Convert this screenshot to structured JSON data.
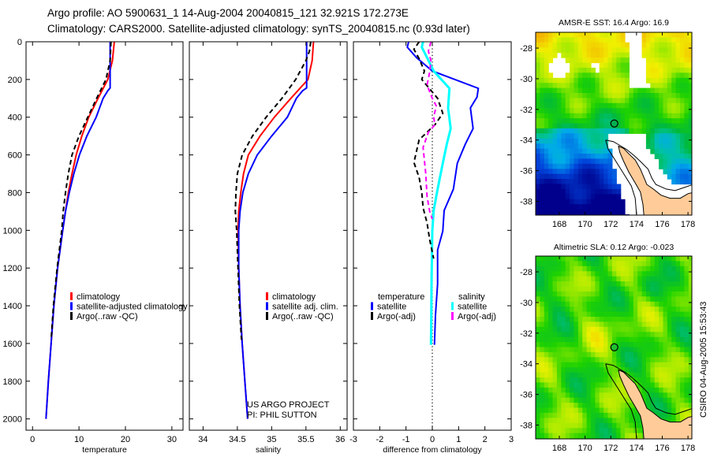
{
  "title": {
    "line1": "Argo profile: AO 5900631_1 14-Aug-2004 20040815_121 32.921S 172.273E",
    "line2": "Climatology: CARS2000. Satellite-adjusted climatology: synTS_20040815.nc (0.93d later)"
  },
  "credits": {
    "project": "US ARGO PROJECT",
    "pi": "PI: PHIL SUTTON"
  },
  "timestamp": "CSIRO 04-Aug-2005 15:53:43",
  "chart_data": [
    {
      "type": "line",
      "xlabel": "temperature",
      "ylabel": "",
      "xlim": [
        -1.4,
        32.4
      ],
      "ylim": [
        0,
        2060
      ],
      "xticks": [
        "0",
        "10",
        "20",
        "30"
      ],
      "yticks": [
        "0",
        "200",
        "400",
        "600",
        "800",
        "1000",
        "1200",
        "1400",
        "1600",
        "1800",
        "2000"
      ],
      "series": [
        {
          "name": "climatology",
          "color": "#ff0000",
          "style": "solid",
          "depth": [
            0,
            100,
            200,
            300,
            400,
            500,
            600,
            700,
            800,
            900,
            1000,
            1200,
            1400,
            1600,
            1800,
            2000
          ],
          "values": [
            17.6,
            17.2,
            16.2,
            14.1,
            12.1,
            10.6,
            9.4,
            8.5,
            7.7,
            7.1,
            6.5,
            5.4,
            4.6,
            4.0,
            3.4,
            2.9
          ]
        },
        {
          "name": "satellite-adjusted climatology",
          "color": "#0000ff",
          "style": "solid",
          "depth": [
            0,
            245,
            260,
            300,
            400,
            500,
            600,
            700,
            800,
            900,
            1000,
            1200,
            1400,
            1600,
            1800,
            2000
          ],
          "values": [
            16.7,
            16.7,
            16.2,
            15.2,
            13.7,
            11.7,
            10.1,
            8.9,
            7.9,
            7.1,
            6.5,
            5.4,
            4.6,
            4.0,
            3.4,
            2.9
          ]
        },
        {
          "name": "Argo(..raw -QC)",
          "color": "#000000",
          "style": "dashed",
          "depth": [
            0,
            100,
            200,
            300,
            400,
            500,
            600,
            700,
            800,
            900,
            1000,
            1200,
            1400,
            1580
          ],
          "values": [
            16.9,
            16.7,
            15.8,
            13.8,
            11.9,
            10.0,
            8.5,
            7.7,
            7.1,
            6.6,
            6.3,
            5.3,
            4.5,
            4.0
          ]
        }
      ],
      "legend": [
        {
          "label": "climatology",
          "color": "#ff0000"
        },
        {
          "label": "satellite-adjusted climatology",
          "color": "#0000ff"
        },
        {
          "label": "Argo(..raw -QC)",
          "color": "#000000"
        }
      ]
    },
    {
      "type": "line",
      "xlabel": "salinity",
      "ylabel": "",
      "xlim": [
        33.8,
        36.1
      ],
      "ylim": [
        0,
        2060
      ],
      "xticks": [
        "34",
        "34.5",
        "35",
        "35.5",
        "36"
      ],
      "series": [
        {
          "name": "climatology",
          "color": "#ff0000",
          "style": "solid",
          "depth": [
            0,
            100,
            200,
            300,
            400,
            500,
            600,
            700,
            800,
            900,
            1000,
            1200,
            1400,
            1600,
            1800,
            2000
          ],
          "values": [
            35.61,
            35.59,
            35.53,
            35.28,
            35.04,
            34.83,
            34.66,
            34.59,
            34.55,
            34.52,
            34.51,
            34.52,
            34.54,
            34.57,
            34.61,
            34.65
          ]
        },
        {
          "name": "satellite adj. clim.",
          "color": "#0000ff",
          "style": "solid",
          "depth": [
            0,
            245,
            260,
            300,
            400,
            500,
            600,
            700,
            800,
            900,
            1000,
            1200,
            1400,
            1600,
            1800,
            2000
          ],
          "values": [
            35.51,
            35.51,
            35.45,
            35.36,
            35.23,
            35.0,
            34.79,
            34.66,
            34.58,
            34.54,
            34.52,
            34.52,
            34.54,
            34.57,
            34.61,
            34.65
          ]
        },
        {
          "name": "Argo(..raw -QC)",
          "color": "#000000",
          "style": "dashed",
          "depth": [
            0,
            50,
            100,
            200,
            300,
            400,
            500,
            600,
            700,
            800,
            900,
            1000,
            1200,
            1400,
            1580
          ],
          "values": [
            35.57,
            35.55,
            35.5,
            35.35,
            35.15,
            34.92,
            34.72,
            34.57,
            34.5,
            34.48,
            34.47,
            34.49,
            34.51,
            34.53,
            34.56
          ]
        }
      ],
      "legend": [
        {
          "label": "climatology",
          "color": "#ff0000"
        },
        {
          "label": "satellite adj. clim.",
          "color": "#0000ff"
        },
        {
          "label": "Argo(..raw -QC)",
          "color": "#000000"
        }
      ]
    },
    {
      "type": "line",
      "xlabel": "difference from climatology",
      "ylabel": "",
      "xlim": [
        -3,
        3
      ],
      "ylim": [
        0,
        2060
      ],
      "xticks": [
        "-3",
        "-2",
        "-1",
        "0",
        "1",
        "2",
        "3"
      ],
      "series": [
        {
          "name": "temperature satellite",
          "color": "#0000ff",
          "style": "solid",
          "width": 2,
          "depth": [
            0,
            29,
            84,
            155,
            247,
            293,
            351,
            460,
            544,
            644,
            782,
            895,
            1004,
            1105,
            1285,
            1450,
            1607
          ],
          "values": [
            -0.9,
            -0.95,
            -0.6,
            0.0,
            1.75,
            1.7,
            1.45,
            1.55,
            1.25,
            0.95,
            0.8,
            0.45,
            0.4,
            0.2,
            0.2,
            0.12,
            0.08
          ]
        },
        {
          "name": "salinity satellite",
          "color": "#00ffff",
          "style": "solid",
          "width": 3,
          "depth": [
            0,
            29,
            84,
            155,
            247,
            351,
            460,
            544,
            644,
            782,
            895,
            1004,
            1285,
            1450,
            1607
          ],
          "values": [
            -0.35,
            -0.4,
            -0.2,
            0.05,
            0.65,
            0.6,
            0.7,
            0.55,
            0.4,
            0.2,
            0.05,
            0.0,
            -0.03,
            -0.04,
            -0.05
          ]
        },
        {
          "name": "temperature Argo(-adj)",
          "color": "#000000",
          "style": "dashed",
          "width": 2,
          "depth": [
            0,
            40,
            90,
            155,
            200,
            250,
            300,
            380,
            440,
            520,
            640,
            720,
            800,
            880,
            960,
            1050,
            1150
          ],
          "values": [
            -0.5,
            -0.7,
            -0.5,
            -0.3,
            -0.4,
            -0.1,
            0.2,
            0.4,
            0.1,
            -0.5,
            -0.7,
            -0.5,
            -0.4,
            -0.35,
            -0.2,
            -0.1,
            0.05
          ]
        },
        {
          "name": "salinity Argo(-adj)",
          "color": "#ff00ff",
          "style": "dashed",
          "width": 2,
          "depth": [
            0,
            50,
            100,
            160,
            230,
            300,
            340,
            400,
            440,
            480,
            560,
            700,
            820,
            900,
            940
          ],
          "values": [
            -0.05,
            -0.15,
            -0.05,
            -0.1,
            -0.2,
            0.0,
            0.15,
            0.05,
            0.1,
            -0.15,
            -0.35,
            -0.25,
            -0.2,
            -0.1,
            0.0
          ]
        }
      ],
      "legend_temperature": {
        "heading": "temperature",
        "items": [
          {
            "label": "satellite",
            "color": "#0000ff"
          },
          {
            "label": "Argo(-adj)",
            "color": "#000000"
          }
        ]
      },
      "legend_salinity": {
        "heading": "salinity",
        "items": [
          {
            "label": "satellite",
            "color": "#00ffff"
          },
          {
            "label": "Argo(-adj)",
            "color": "#ff00ff"
          }
        ]
      }
    },
    {
      "type": "heatmap",
      "title": "AMSR-E SST: 16.4 Argo: 16.9",
      "field": "sst",
      "xlim": [
        166.16,
        178.3
      ],
      "ylim": [
        -38.9,
        -26.97
      ],
      "xticks": [
        "168",
        "170",
        "172",
        "174",
        "176",
        "178"
      ],
      "yticks": [
        "-28",
        "-30",
        "-32",
        "-34",
        "-36",
        "-38"
      ],
      "argo_position": {
        "lon": 172.273,
        "lat": -32.921
      },
      "land_color": "#ffcc99"
    },
    {
      "type": "heatmap",
      "title": "Altimetric SLA: 0.12 Argo: -0.023",
      "field": "sla",
      "xlim": [
        166.16,
        178.3
      ],
      "ylim": [
        -38.9,
        -26.97
      ],
      "xticks": [
        "168",
        "170",
        "172",
        "174",
        "176",
        "178"
      ],
      "yticks": [
        "-28",
        "-30",
        "-32",
        "-34",
        "-36",
        "-38"
      ],
      "argo_position": {
        "lon": 172.273,
        "lat": -32.921
      },
      "land_color": "#ffcc99"
    }
  ]
}
